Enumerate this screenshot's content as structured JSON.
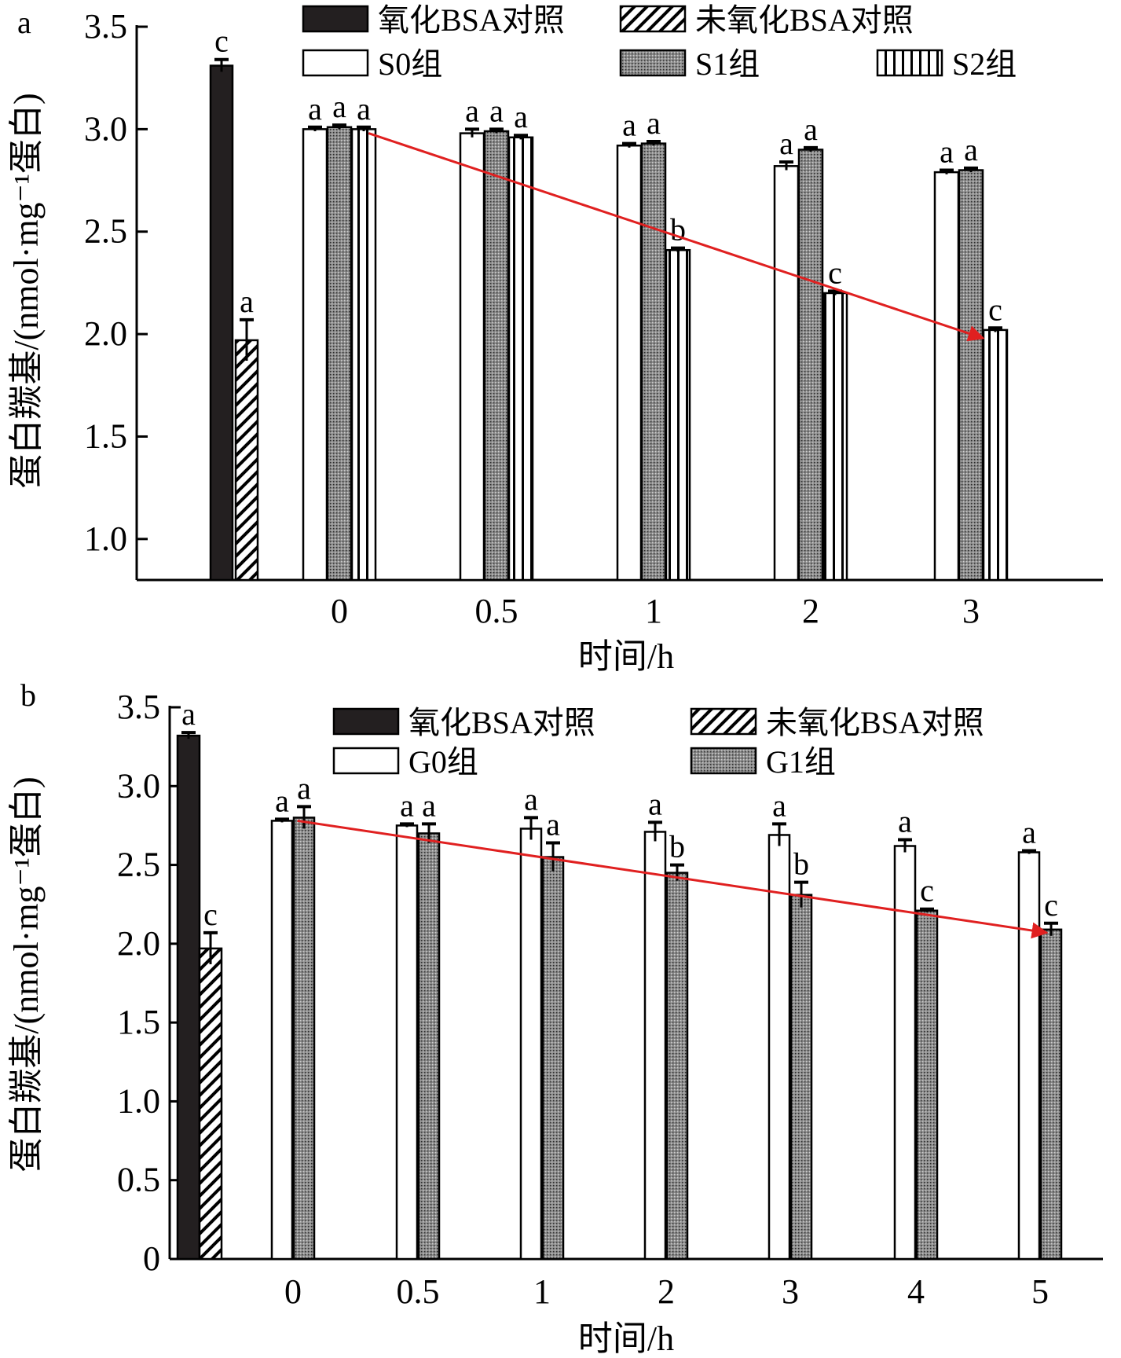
{
  "chart_data": [
    {
      "type": "bar",
      "panel_label": "a",
      "ylabel": "蛋白羰基/(nmol·mg⁻¹蛋白)",
      "xlabel": "时间/h",
      "ylim": [
        0.8,
        3.5
      ],
      "yticks": [
        "1.0",
        "1.5",
        "2.0",
        "2.5",
        "3.0",
        "3.5"
      ],
      "grid": false,
      "legend_position": "top",
      "controls": [
        {
          "name": "氧化BSA对照",
          "value": 3.31,
          "error": 0.03,
          "sig": "c",
          "pattern": "solid",
          "color": "#231f20"
        },
        {
          "name": "未氧化BSA对照",
          "value": 1.97,
          "error": 0.1,
          "sig": "a",
          "pattern": "diagonal"
        }
      ],
      "categories": [
        "0",
        "0.5",
        "1",
        "2",
        "3"
      ],
      "series": [
        {
          "name": "S0组",
          "pattern": "white",
          "values": [
            3.0,
            2.98,
            2.92,
            2.82,
            2.79
          ],
          "errors": [
            0.01,
            0.02,
            0.01,
            0.02,
            0.01
          ],
          "sig": [
            "a",
            "a",
            "a",
            "a",
            "a"
          ]
        },
        {
          "name": "S1组",
          "pattern": "dots",
          "values": [
            3.01,
            2.99,
            2.93,
            2.9,
            2.8
          ],
          "errors": [
            0.01,
            0.01,
            0.01,
            0.01,
            0.01
          ],
          "sig": [
            "a",
            "a",
            "a",
            "a",
            "a"
          ]
        },
        {
          "name": "S2组",
          "pattern": "vertical",
          "values": [
            3.0,
            2.96,
            2.41,
            2.2,
            2.02
          ],
          "errors": [
            0.01,
            0.01,
            0.01,
            0.01,
            0.01
          ],
          "sig": [
            "a",
            "a",
            "b",
            "c",
            "c"
          ]
        }
      ],
      "trend_arrow": {
        "from_category": "0",
        "from_value": 2.98,
        "to_category": "3",
        "to_value": 1.98,
        "color": "#e02020"
      }
    },
    {
      "type": "bar",
      "panel_label": "b",
      "ylabel": "蛋白羰基/(nmol·mg⁻¹蛋白)",
      "xlabel": "时间/h",
      "ylim": [
        0,
        3.5
      ],
      "yticks": [
        "0",
        "0.5",
        "1.0",
        "1.5",
        "2.0",
        "2.5",
        "3.0",
        "3.5"
      ],
      "grid": false,
      "legend_position": "top",
      "controls": [
        {
          "name": "氧化BSA对照",
          "value": 3.32,
          "error": 0.02,
          "sig": "a",
          "pattern": "solid",
          "color": "#231f20"
        },
        {
          "name": "未氧化BSA对照",
          "value": 1.97,
          "error": 0.1,
          "sig": "c",
          "pattern": "diagonal"
        }
      ],
      "categories": [
        "0",
        "0.5",
        "1",
        "2",
        "3",
        "4",
        "5"
      ],
      "series": [
        {
          "name": "G0组",
          "pattern": "white",
          "values": [
            2.78,
            2.75,
            2.73,
            2.71,
            2.69,
            2.62,
            2.58
          ],
          "errors": [
            0.01,
            0.01,
            0.07,
            0.06,
            0.07,
            0.04,
            0.01
          ],
          "sig": [
            "a",
            "a",
            "a",
            "a",
            "a",
            "a",
            "a"
          ]
        },
        {
          "name": "G1组",
          "pattern": "dots",
          "values": [
            2.8,
            2.7,
            2.55,
            2.45,
            2.31,
            2.21,
            2.09
          ],
          "errors": [
            0.07,
            0.06,
            0.09,
            0.05,
            0.08,
            0.01,
            0.04
          ],
          "sig": [
            "a",
            "a",
            "a",
            "b",
            "b",
            "c",
            "c"
          ]
        }
      ],
      "trend_arrow": {
        "from_category": "0",
        "from_value": 2.78,
        "to_category": "5",
        "to_value": 2.07,
        "color": "#e02020"
      }
    }
  ]
}
